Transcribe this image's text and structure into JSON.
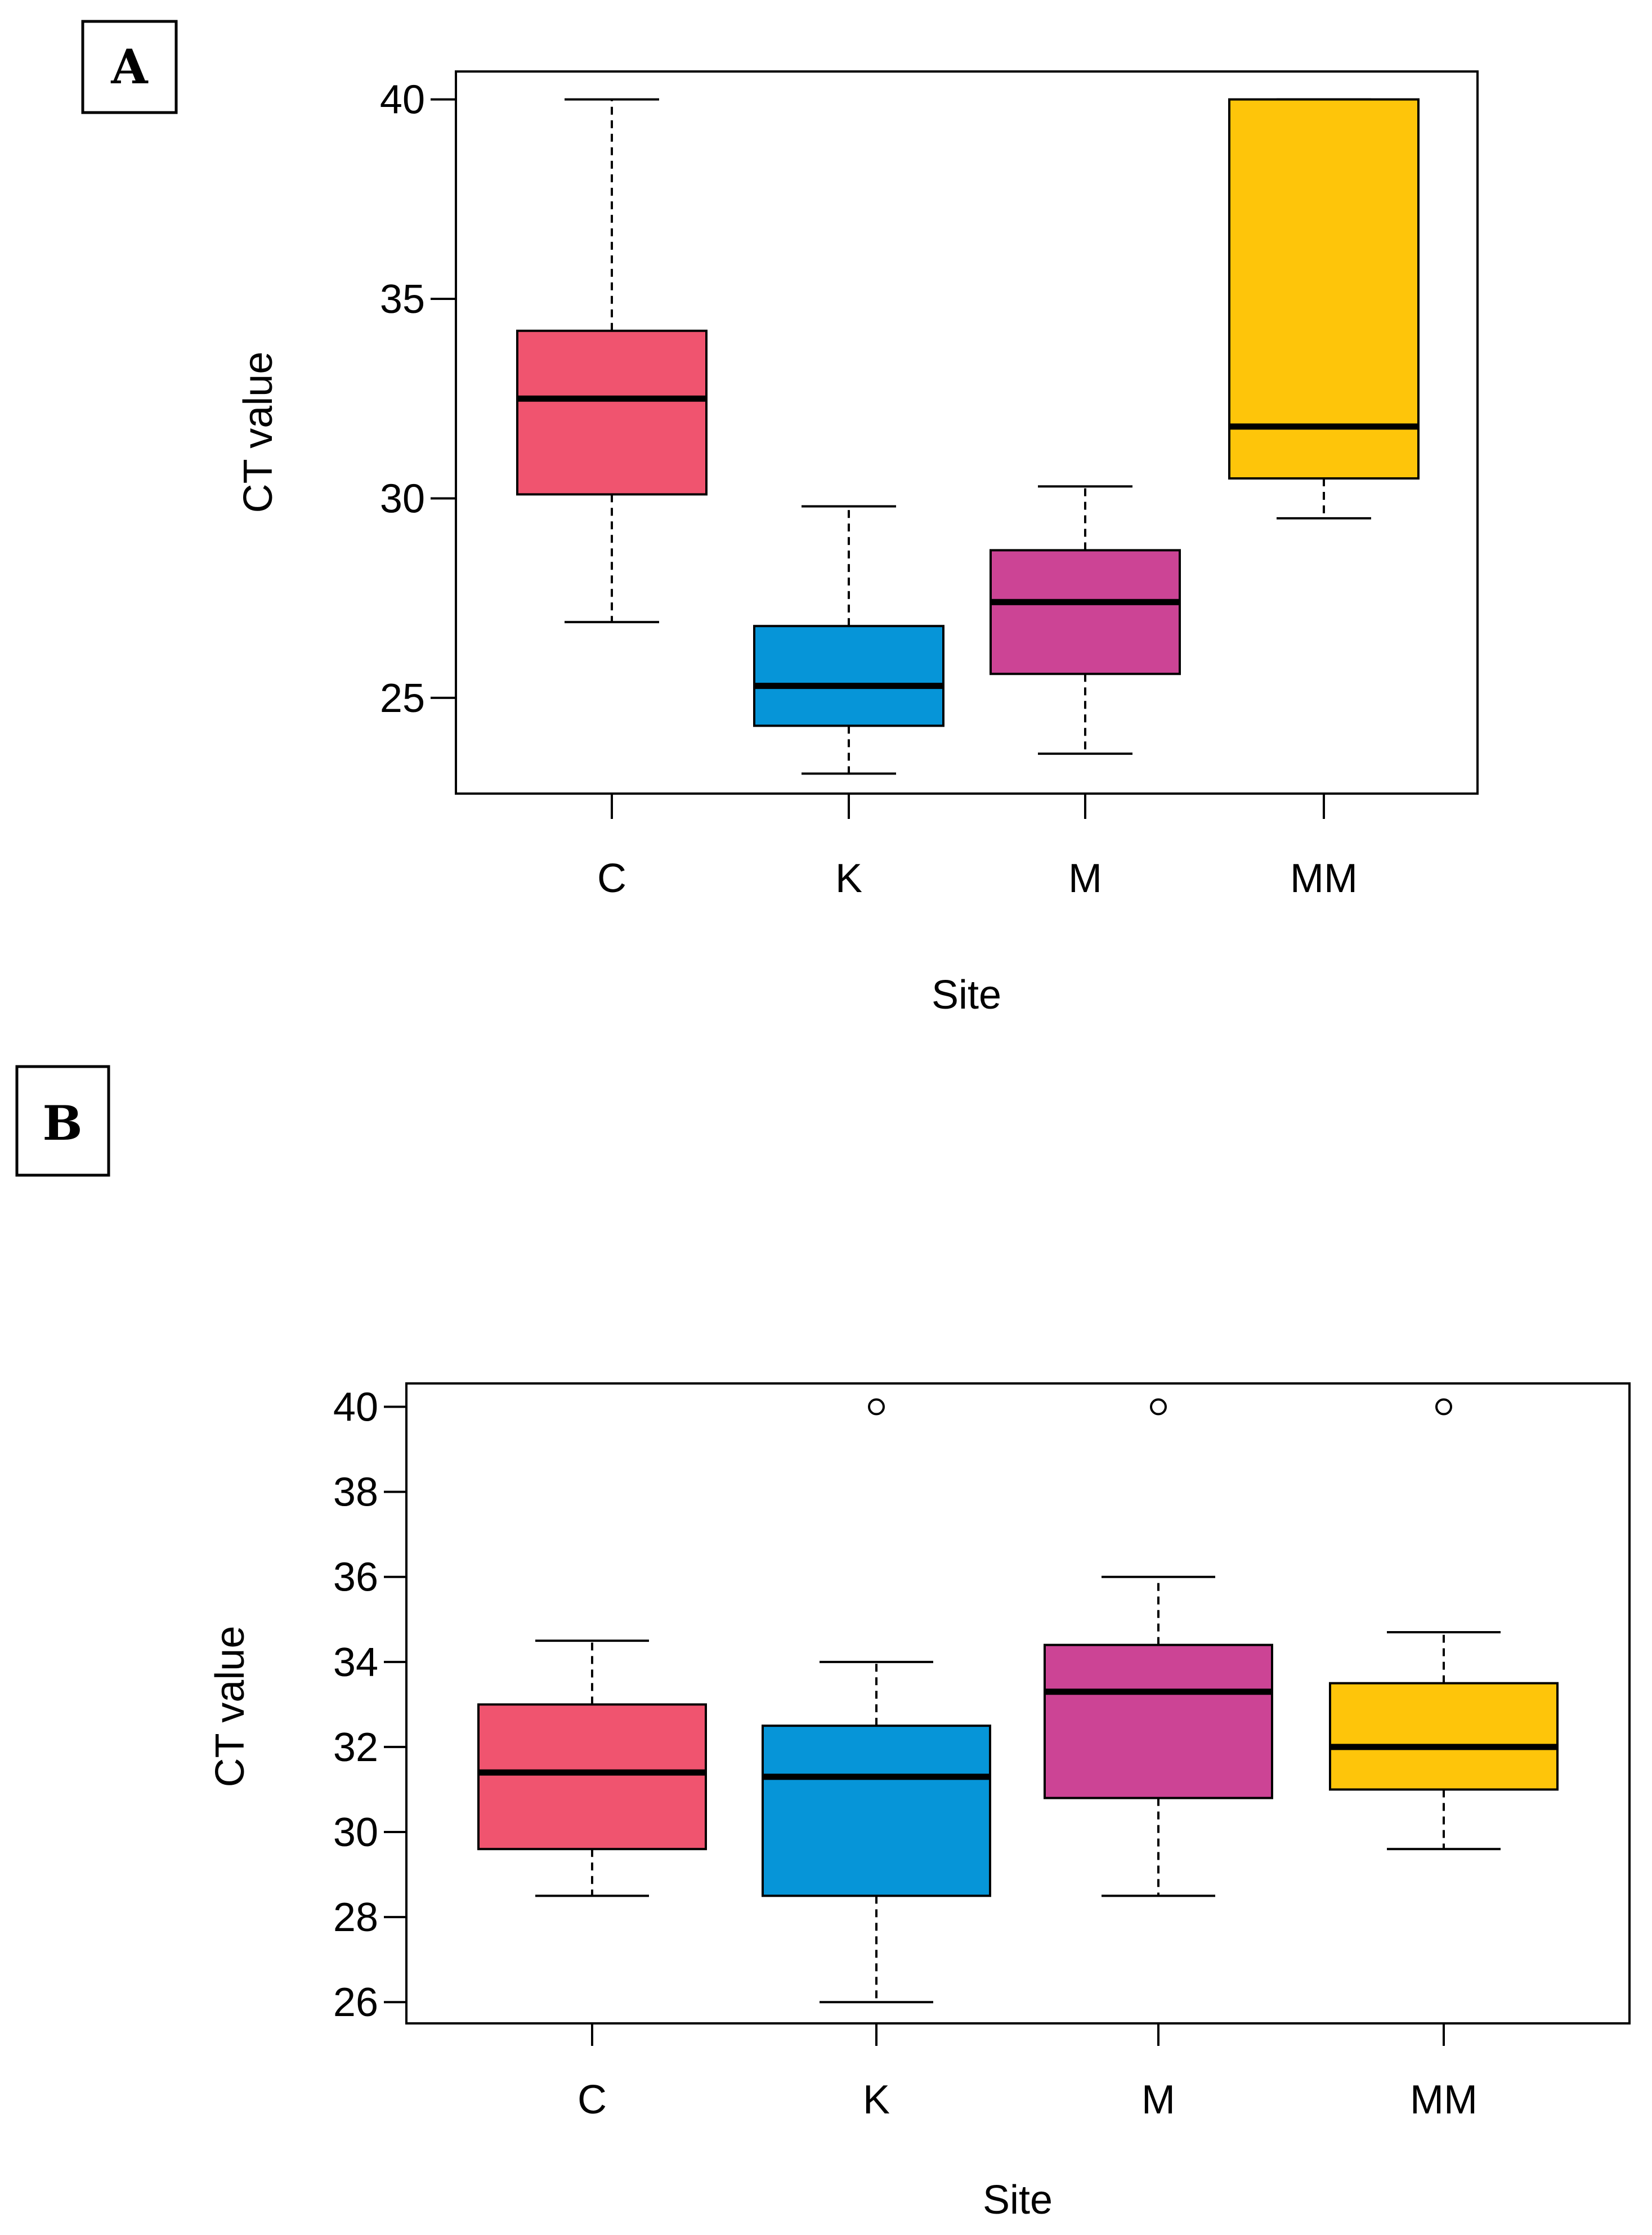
{
  "chart_data": [
    {
      "panel": "A",
      "type": "box",
      "title": "",
      "xlabel": "Site",
      "ylabel": "CT value",
      "categories": [
        "C",
        "K",
        "M",
        "MM"
      ],
      "colors": [
        "#F0546F",
        "#0695D8",
        "#CC4495",
        "#FEC50A"
      ],
      "yticks": [
        25,
        30,
        35,
        40
      ],
      "ylim": [
        22.6,
        40.7
      ],
      "boxes": [
        {
          "lower_whisker": 26.9,
          "q1": 30.1,
          "median": 32.5,
          "q3": 34.2,
          "upper_whisker": 40.0,
          "outliers": []
        },
        {
          "lower_whisker": 23.1,
          "q1": 24.3,
          "median": 25.3,
          "q3": 26.8,
          "upper_whisker": 29.8,
          "outliers": []
        },
        {
          "lower_whisker": 23.6,
          "q1": 25.6,
          "median": 27.4,
          "q3": 28.7,
          "upper_whisker": 30.3,
          "outliers": []
        },
        {
          "lower_whisker": 29.5,
          "q1": 30.5,
          "median": 31.8,
          "q3": 40.0,
          "upper_whisker": 40.0,
          "outliers": []
        }
      ]
    },
    {
      "panel": "B",
      "type": "box",
      "title": "",
      "xlabel": "Site",
      "ylabel": "CT value",
      "categories": [
        "C",
        "K",
        "M",
        "MM"
      ],
      "colors": [
        "#F0546F",
        "#0695D8",
        "#CC4495",
        "#FEC50A"
      ],
      "yticks": [
        26,
        28,
        30,
        32,
        34,
        36,
        38,
        40
      ],
      "ylim": [
        25.5,
        40.55
      ],
      "boxes": [
        {
          "lower_whisker": 28.5,
          "q1": 29.6,
          "median": 31.4,
          "q3": 33.0,
          "upper_whisker": 34.5,
          "outliers": []
        },
        {
          "lower_whisker": 26.0,
          "q1": 28.5,
          "median": 31.3,
          "q3": 32.5,
          "upper_whisker": 34.0,
          "outliers": [
            40.0
          ]
        },
        {
          "lower_whisker": 28.5,
          "q1": 30.8,
          "median": 33.3,
          "q3": 34.4,
          "upper_whisker": 36.0,
          "outliers": [
            40.0
          ]
        },
        {
          "lower_whisker": 29.6,
          "q1": 31.0,
          "median": 32.0,
          "q3": 33.5,
          "upper_whisker": 34.7,
          "outliers": [
            40.0
          ]
        }
      ]
    }
  ]
}
